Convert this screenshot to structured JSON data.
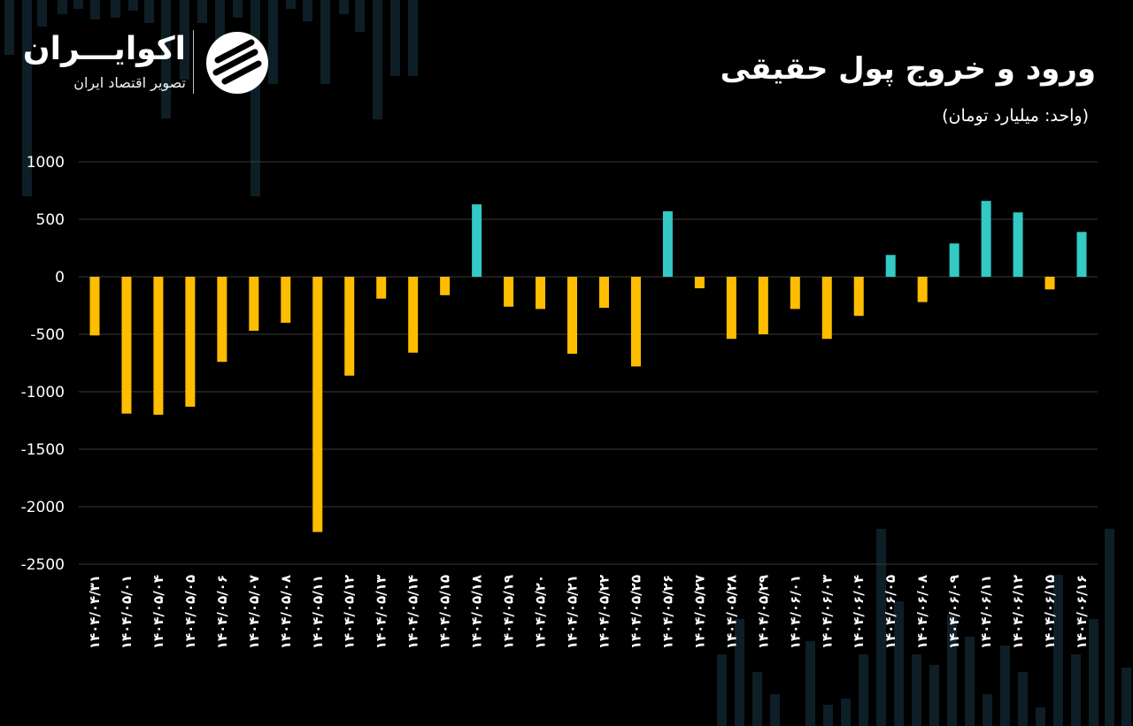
{
  "brand": {
    "name": "اکوایـــران",
    "tagline": "تصویر اقتصاد ایران"
  },
  "colors": {
    "background": "#000000",
    "outflow": "#FFBD00",
    "inflow": "#33C9C4",
    "grid": "#3A3A3A",
    "decor": "#0D1E26"
  },
  "chart_data": {
    "type": "bar",
    "title": "ورود و خروج پول حقیقی",
    "subtitle": "(واحد: میلیارد تومان)",
    "xlabel": "",
    "ylabel": "",
    "ylim": [
      -2500,
      1000
    ],
    "yticks": [
      1000,
      500,
      0,
      -500,
      -1000,
      -1500,
      -2000,
      -2500
    ],
    "ytick_labels": [
      "1000",
      "500",
      "0",
      "-500",
      "-1000",
      "-1500",
      "-2000",
      "-2500"
    ],
    "grid": true,
    "legend": "none",
    "categories": [
      "۱۴۰۴/۰۴/۳۱",
      "۱۴۰۴/۰۵/۰۱",
      "۱۴۰۴/۰۵/۰۴",
      "۱۴۰۴/۰۵/۰۵",
      "۱۴۰۴/۰۵/۰۶",
      "۱۴۰۴/۰۵/۰۷",
      "۱۴۰۴/۰۵/۰۸",
      "۱۴۰۴/۰۵/۱۱",
      "۱۴۰۴/۰۵/۱۲",
      "۱۴۰۴/۰۵/۱۳",
      "۱۴۰۴/۰۵/۱۴",
      "۱۴۰۴/۰۵/۱۵",
      "۱۴۰۴/۰۵/۱۸",
      "۱۴۰۴/۰۵/۱۹",
      "۱۴۰۴/۰۵/۲۰",
      "۱۴۰۴/۰۵/۲۱",
      "۱۴۰۴/۰۵/۲۲",
      "۱۴۰۴/۰۵/۲۵",
      "۱۴۰۴/۰۵/۲۶",
      "۱۴۰۴/۰۵/۲۷",
      "۱۴۰۴/۰۵/۲۸",
      "۱۴۰۴/۰۵/۲۹",
      "۱۴۰۴/۰۶/۰۱",
      "۱۴۰۴/۰۶/۰۳",
      "۱۴۰۴/۰۶/۰۴",
      "۱۴۰۴/۰۶/۰۵",
      "۱۴۰۴/۰۶/۰۸",
      "۱۴۰۴/۰۶/۰۹",
      "۱۴۰۴/۰۶/۱۱",
      "۱۴۰۴/۰۶/۱۲",
      "۱۴۰۴/۰۶/۱۵",
      "۱۴۰۴/۰۶/۱۶"
    ],
    "values": [
      -510,
      -1190,
      -1200,
      -1130,
      -740,
      -470,
      -400,
      -2220,
      -860,
      -190,
      -660,
      -160,
      630,
      -260,
      -280,
      -670,
      -270,
      -780,
      570,
      -100,
      -540,
      -500,
      -280,
      -540,
      -340,
      190,
      -220,
      290,
      660,
      560,
      -110,
      390
    ]
  }
}
